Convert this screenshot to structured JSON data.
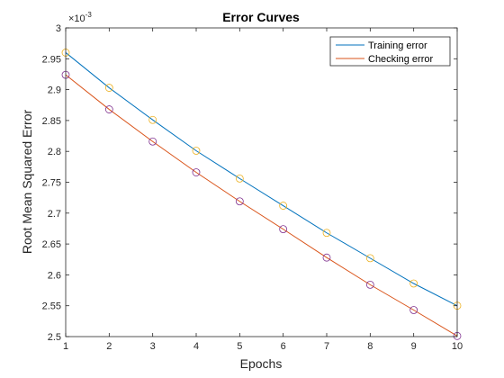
{
  "chart_data": {
    "type": "line",
    "title": "Error Curves",
    "xlabel": "Epochs",
    "ylabel": "Root Mean Squared Error",
    "exponent_label": "×10",
    "exponent_power": "-3",
    "x": [
      1,
      2,
      3,
      4,
      5,
      6,
      7,
      8,
      9,
      10
    ],
    "xlim": [
      1,
      10
    ],
    "ylim": [
      2.5,
      3.0
    ],
    "xticks": [
      1,
      2,
      3,
      4,
      5,
      6,
      7,
      8,
      9,
      10
    ],
    "xtick_labels": [
      "1",
      "2",
      "3",
      "4",
      "5",
      "6",
      "7",
      "8",
      "9",
      "10"
    ],
    "yticks": [
      2.5,
      2.55,
      2.6,
      2.65,
      2.7,
      2.75,
      2.8,
      2.85,
      2.9,
      2.95,
      3.0
    ],
    "ytick_labels": [
      "2.5",
      "2.55",
      "2.6",
      "2.65",
      "2.7",
      "2.75",
      "2.8",
      "2.85",
      "2.9",
      "2.95",
      "3"
    ],
    "grid": false,
    "legend_position": "top-right",
    "series": [
      {
        "name": "Training error",
        "color": "#0072BD",
        "marker_color": "#EDB120",
        "values": [
          2.96,
          2.903,
          2.851,
          2.801,
          2.756,
          2.712,
          2.668,
          2.627,
          2.586,
          2.55
        ]
      },
      {
        "name": "Checking error",
        "color": "#D95319",
        "marker_color": "#7E2F8E",
        "values": [
          2.924,
          2.868,
          2.816,
          2.766,
          2.719,
          2.674,
          2.628,
          2.584,
          2.543,
          2.501
        ]
      }
    ]
  }
}
